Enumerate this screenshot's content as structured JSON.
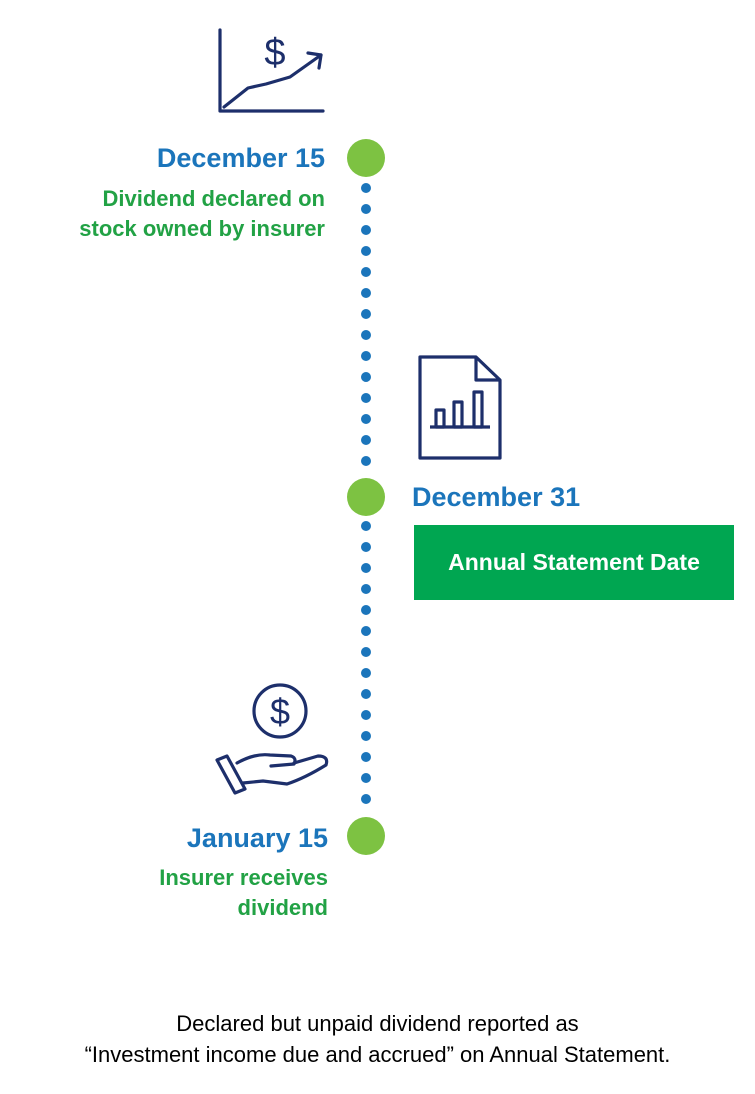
{
  "events": [
    {
      "date": "December 15",
      "description_line1": "Dividend declared on",
      "description_line2": "stock owned by insurer",
      "icon": "dollar-growth-chart-icon"
    },
    {
      "date": "December 31",
      "label": "Annual Statement Date",
      "icon": "report-document-chart-icon"
    },
    {
      "date": "January 15",
      "description_line1": "Insurer receives",
      "description_line2": "dividend",
      "icon": "hand-receiving-coin-icon"
    }
  ],
  "footnote_line1": "Declared but unpaid dividend reported as",
  "footnote_line2": "“Investment income due and accrued” on Annual Statement.",
  "colors": {
    "date_blue": "#1b75bb",
    "description_green": "#22a245",
    "timeline_dot_green": "#7dc242",
    "timeline_dotted_blue": "#1b75bb",
    "badge_green": "#00a651",
    "icon_navy": "#1d2f6b"
  }
}
